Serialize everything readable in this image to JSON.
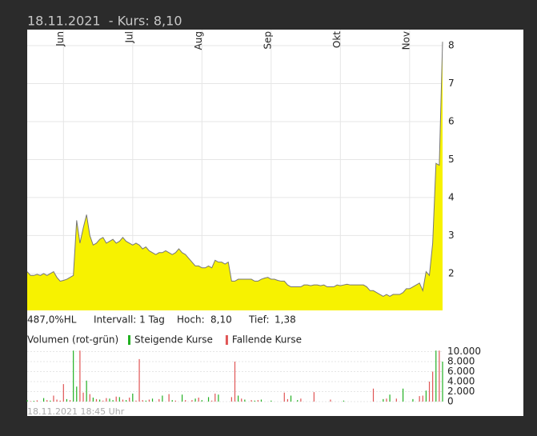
{
  "header": "18.11.2021  - Kurs: 8,10",
  "footer": "18.11.2021 18:45 Uhr",
  "stats": [
    "487,0%HL",
    "Intervall: 1 Tag",
    "Hoch:",
    "8,10",
    "Tief:",
    "1,38"
  ],
  "chart_data": [
    {
      "type": "area",
      "xlim": [
        0,
        126
      ],
      "xticks": [
        {
          "value": 11,
          "label": "Jun"
        },
        {
          "value": 32,
          "label": "Jul"
        },
        {
          "value": 53,
          "label": "Aug"
        },
        {
          "value": 74,
          "label": "Sep"
        },
        {
          "value": 95,
          "label": "Okt"
        },
        {
          "value": 116,
          "label": "Nov"
        }
      ],
      "ylim": [
        1.03,
        8.42
      ],
      "yticks": [
        2,
        3,
        4,
        5,
        6,
        7,
        8
      ],
      "grid": true,
      "color": "#f7f200",
      "line_color": "#777777",
      "values": [
        2.05,
        1.95,
        1.95,
        1.98,
        1.95,
        2.0,
        1.95,
        2.0,
        2.05,
        1.9,
        1.8,
        1.82,
        1.85,
        1.9,
        1.95,
        3.4,
        2.8,
        3.2,
        3.55,
        3.0,
        2.75,
        2.8,
        2.9,
        2.95,
        2.8,
        2.85,
        2.9,
        2.8,
        2.85,
        2.95,
        2.85,
        2.8,
        2.75,
        2.8,
        2.75,
        2.65,
        2.7,
        2.6,
        2.55,
        2.5,
        2.55,
        2.55,
        2.6,
        2.55,
        2.5,
        2.55,
        2.65,
        2.55,
        2.5,
        2.4,
        2.3,
        2.2,
        2.2,
        2.15,
        2.15,
        2.2,
        2.15,
        2.35,
        2.3,
        2.3,
        2.25,
        2.3,
        1.8,
        1.8,
        1.85,
        1.85,
        1.85,
        1.85,
        1.85,
        1.8,
        1.8,
        1.85,
        1.88,
        1.9,
        1.85,
        1.85,
        1.82,
        1.8,
        1.8,
        1.7,
        1.65,
        1.65,
        1.65,
        1.65,
        1.7,
        1.7,
        1.68,
        1.7,
        1.7,
        1.68,
        1.7,
        1.65,
        1.65,
        1.65,
        1.7,
        1.68,
        1.7,
        1.72,
        1.7,
        1.7,
        1.7,
        1.7,
        1.7,
        1.65,
        1.55,
        1.55,
        1.5,
        1.45,
        1.4,
        1.45,
        1.4,
        1.45,
        1.45,
        1.45,
        1.5,
        1.6,
        1.6,
        1.65,
        1.7,
        1.75,
        1.55,
        2.05,
        1.95,
        2.8,
        4.9,
        4.85,
        8.1
      ]
    },
    {
      "type": "bar",
      "title": "Volumen (rot-grün)",
      "xlim": [
        0,
        126
      ],
      "ylim": [
        0,
        10400
      ],
      "yticks": [
        0,
        {
          "value": 2000,
          "label": "2.000"
        },
        {
          "value": 4000,
          "label": "4.000"
        },
        {
          "value": 6000,
          "label": "6.000"
        },
        {
          "value": 8000,
          "label": "8.000"
        },
        {
          "value": 10000,
          "label": "10.000"
        }
      ],
      "series": [
        {
          "name": "Steigende Kurse",
          "color": "#22b022",
          "values": [
            300,
            null,
            150,
            null,
            null,
            700,
            null,
            200,
            null,
            null,
            null,
            null,
            500,
            null,
            10200,
            3000,
            null,
            null,
            4200,
            null,
            800,
            null,
            400,
            null,
            null,
            600,
            300,
            null,
            900,
            null,
            300,
            null,
            1600,
            null,
            null,
            null,
            200,
            null,
            600,
            null,
            null,
            1200,
            null,
            null,
            300,
            null,
            null,
            1400,
            null,
            null,
            null,
            600,
            null,
            300,
            null,
            900,
            null,
            null,
            1400,
            null,
            null,
            null,
            null,
            null,
            1200,
            null,
            400,
            null,
            null,
            200,
            null,
            400,
            null,
            null,
            200,
            null,
            null,
            null,
            null,
            null,
            1200,
            null,
            300,
            null,
            null,
            null,
            null,
            null,
            null,
            null,
            null,
            null,
            null,
            null,
            null,
            null,
            200,
            null,
            null,
            null,
            null,
            null,
            null,
            null,
            null,
            null,
            null,
            null,
            500,
            null,
            1400,
            null,
            null,
            null,
            2600,
            null,
            null,
            500,
            null,
            null,
            null,
            2200,
            null,
            null,
            10200,
            null,
            8000
          ]
        },
        {
          "name": "Fallende Kurse",
          "color": "#e05555",
          "values": [
            null,
            100,
            null,
            250,
            null,
            null,
            300,
            null,
            1200,
            400,
            200,
            3500,
            null,
            300,
            null,
            null,
            10200,
            1800,
            null,
            1500,
            null,
            500,
            null,
            200,
            700,
            null,
            null,
            1000,
            null,
            400,
            null,
            800,
            null,
            200,
            8500,
            300,
            null,
            400,
            null,
            null,
            500,
            null,
            null,
            1500,
            null,
            200,
            null,
            null,
            300,
            null,
            300,
            null,
            800,
            null,
            null,
            null,
            200,
            1600,
            null,
            null,
            null,
            null,
            900,
            8000,
            null,
            600,
            null,
            null,
            300,
            null,
            300,
            null,
            null,
            null,
            null,
            null,
            null,
            null,
            1800,
            500,
            null,
            null,
            null,
            600,
            null,
            null,
            null,
            1900,
            null,
            null,
            null,
            null,
            400,
            null,
            null,
            null,
            null,
            null,
            null,
            null,
            null,
            null,
            null,
            null,
            null,
            2600,
            null,
            null,
            null,
            600,
            null,
            null,
            600,
            null,
            null,
            null,
            null,
            null,
            null,
            1100,
            1200,
            null,
            4000,
            6000,
            null,
            10200,
            null
          ]
        }
      ]
    }
  ]
}
